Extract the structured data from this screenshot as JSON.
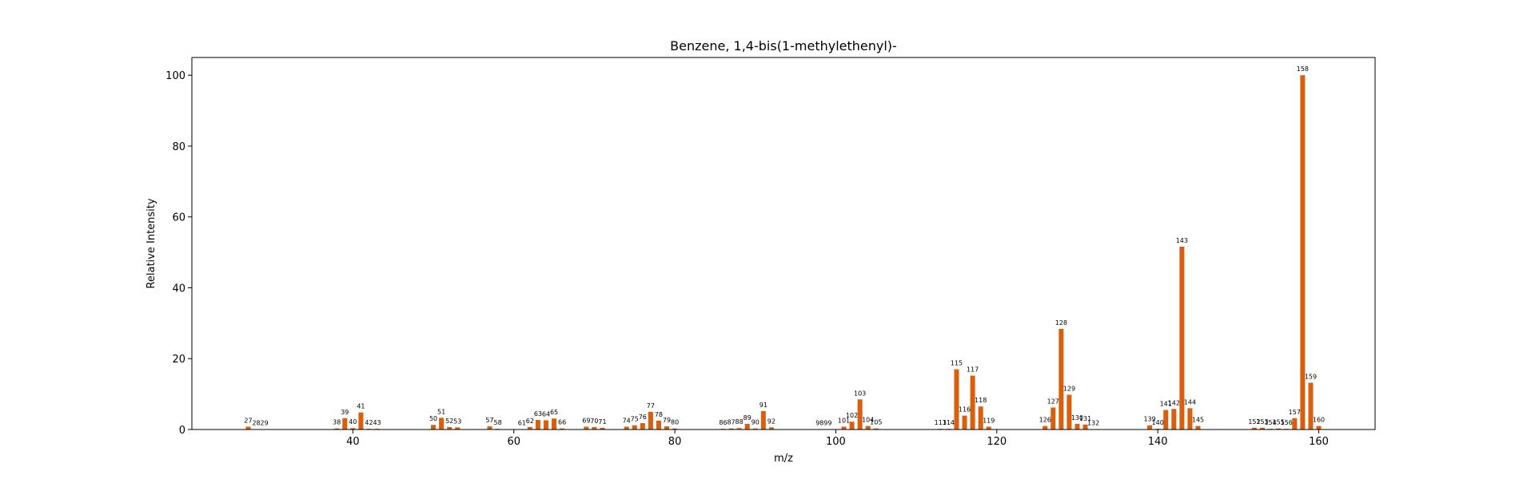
{
  "chart_data": {
    "type": "bar",
    "title": "Benzene, 1,4-bis(1-methylethenyl)-",
    "xlabel": "m/z",
    "ylabel": "Relative Intensity",
    "xlim": [
      20,
      167
    ],
    "ylim": [
      0,
      105
    ],
    "xticks": [
      40,
      60,
      80,
      100,
      120,
      140,
      160
    ],
    "yticks": [
      0,
      20,
      40,
      60,
      80,
      100
    ],
    "grid": false,
    "bar_color": "#d95f0e",
    "x": [
      27,
      28,
      29,
      38,
      39,
      40,
      41,
      42,
      43,
      50,
      51,
      52,
      53,
      57,
      58,
      61,
      62,
      63,
      64,
      65,
      66,
      69,
      70,
      71,
      74,
      75,
      76,
      77,
      78,
      79,
      80,
      86,
      87,
      88,
      89,
      90,
      91,
      92,
      98,
      99,
      101,
      102,
      103,
      104,
      105,
      113,
      114,
      115,
      116,
      117,
      118,
      119,
      126,
      127,
      128,
      129,
      130,
      131,
      132,
      139,
      140,
      141,
      142,
      143,
      144,
      145,
      152,
      153,
      154,
      155,
      156,
      157,
      158,
      159,
      160
    ],
    "labels": [
      "27",
      "28",
      "29",
      "38",
      "39",
      "40",
      "41",
      "42",
      "43",
      "50",
      "51",
      "52",
      "53",
      "57",
      "58",
      "61",
      "62",
      "63",
      "64",
      "65",
      "66",
      "69",
      "70",
      "71",
      "74",
      "75",
      "76",
      "77",
      "78",
      "79",
      "80",
      "86",
      "87",
      "88",
      "89",
      "90",
      "91",
      "92",
      "98",
      "99",
      "101",
      "102",
      "103",
      "104",
      "105",
      "113",
      "114",
      "115",
      "116",
      "117",
      "118",
      "119",
      "126",
      "127",
      "128",
      "129",
      "130",
      "131",
      "132",
      "139",
      "140",
      "141",
      "142",
      "143",
      "144",
      "145",
      "152",
      "153",
      "154",
      "155",
      "156",
      "157",
      "158",
      "159",
      "160"
    ],
    "values": [
      0.8,
      0.1,
      0.1,
      0.3,
      3.2,
      0.4,
      4.8,
      0.2,
      0.2,
      1.3,
      3.3,
      0.7,
      0.6,
      0.9,
      0.2,
      0.1,
      0.7,
      2.7,
      2.6,
      3.1,
      0.3,
      0.8,
      0.7,
      0.5,
      0.8,
      1.2,
      1.8,
      5.0,
      2.5,
      0.9,
      0.3,
      0.2,
      0.3,
      0.4,
      1.6,
      0.3,
      5.2,
      0.6,
      0.1,
      0.1,
      0.8,
      2.2,
      8.5,
      1.0,
      0.3,
      0.2,
      0.2,
      17.0,
      3.9,
      15.2,
      6.5,
      0.8,
      1.0,
      6.2,
      28.4,
      9.8,
      1.6,
      1.4,
      0.1,
      1.2,
      0.2,
      5.5,
      5.8,
      51.6,
      6.0,
      1.0,
      0.5,
      0.5,
      0.2,
      0.3,
      0.2,
      3.2,
      100.0,
      13.2,
      1.0
    ]
  }
}
